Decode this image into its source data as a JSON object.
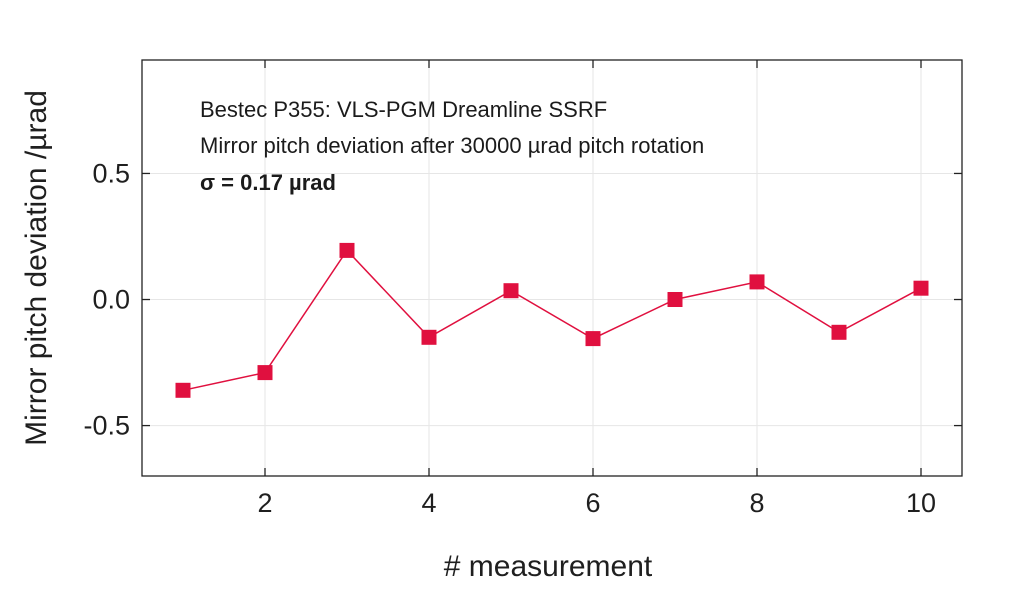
{
  "chart_data": {
    "type": "line",
    "xlabel": "# measurement",
    "ylabel": "Mirror pitch deviation /µrad",
    "xlim": [
      0.5,
      10.5
    ],
    "ylim": [
      -0.7,
      0.95
    ],
    "x_ticks": [
      2,
      4,
      6,
      8,
      10
    ],
    "x_tick_labels": [
      "2",
      "4",
      "6",
      "8",
      "10"
    ],
    "y_ticks": [
      -0.5,
      0.0,
      0.5
    ],
    "y_tick_labels": [
      "-0.5",
      "0.0",
      "0.5"
    ],
    "grid": true,
    "series": [
      {
        "x": [
          1,
          2,
          3,
          4,
          5,
          6,
          7,
          8,
          9,
          10
        ],
        "y": [
          -0.36,
          -0.29,
          0.195,
          -0.15,
          0.035,
          -0.155,
          0.0,
          0.07,
          -0.13,
          0.045
        ],
        "color": "#e0103f",
        "marker": "square"
      }
    ],
    "annotations": [
      "Bestec P355: VLS-PGM Dreamline SSRF",
      "Mirror pitch deviation after 30000 µrad pitch rotation",
      "σ  = 0.17 µrad"
    ]
  }
}
